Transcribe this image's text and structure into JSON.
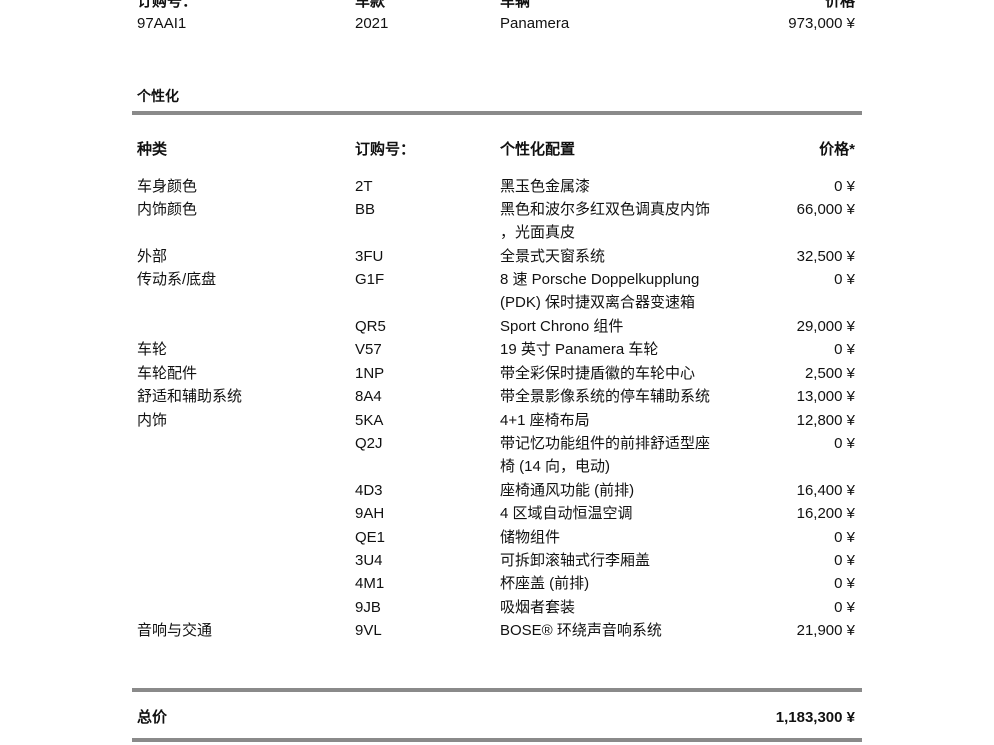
{
  "vehicle": {
    "headers": {
      "order_no": "订购号：",
      "model_year": "车款",
      "vehicle": "车辆",
      "price": "价格"
    },
    "order_no": "97AAI1",
    "model_year": "2021",
    "vehicle": "Panamera",
    "price": "973,000 ¥"
  },
  "personalization": {
    "title": "个性化",
    "headers": {
      "category": "种类",
      "order_no": "订购号：",
      "config": "个性化配置",
      "price": "价格*"
    },
    "rows": [
      {
        "category": "车身颜色",
        "code": "2T",
        "config": [
          "黑玉色金属漆"
        ],
        "price": "0 ¥"
      },
      {
        "category": "内饰颜色",
        "code": "BB",
        "config": [
          "黑色和波尔多红双色调真皮内饰",
          "，光面真皮"
        ],
        "price": "66,000 ¥"
      },
      {
        "category": "外部",
        "code": "3FU",
        "config": [
          "全景式天窗系统"
        ],
        "price": "32,500 ¥"
      },
      {
        "category": "传动系/底盘",
        "code": "G1F",
        "config": [
          "8 速 Porsche Doppelkupplung",
          "(PDK) 保时捷双离合器变速箱"
        ],
        "price": "0 ¥"
      },
      {
        "category": "",
        "code": "QR5",
        "config": [
          "Sport Chrono 组件"
        ],
        "price": "29,000 ¥"
      },
      {
        "category": "车轮",
        "code": "V57",
        "config": [
          "19 英寸 Panamera 车轮"
        ],
        "price": "0 ¥"
      },
      {
        "category": "车轮配件",
        "code": "1NP",
        "config": [
          "带全彩保时捷盾徽的车轮中心"
        ],
        "price": "2,500 ¥"
      },
      {
        "category": "舒适和辅助系统",
        "code": "8A4",
        "config": [
          "带全景影像系统的停车辅助系统"
        ],
        "price": "13,000 ¥"
      },
      {
        "category": "内饰",
        "code": "5KA",
        "config": [
          "4+1 座椅布局"
        ],
        "price": "12,800 ¥"
      },
      {
        "category": "",
        "code": "Q2J",
        "config": [
          "带记忆功能组件的前排舒适型座",
          "椅 (14 向，电动)"
        ],
        "price": "0 ¥"
      },
      {
        "category": "",
        "code": "4D3",
        "config": [
          "座椅通风功能 (前排)"
        ],
        "price": "16,400 ¥"
      },
      {
        "category": "",
        "code": "9AH",
        "config": [
          "4 区域自动恒温空调"
        ],
        "price": "16,200 ¥"
      },
      {
        "category": "",
        "code": "QE1",
        "config": [
          "储物组件"
        ],
        "price": "0 ¥"
      },
      {
        "category": "",
        "code": "3U4",
        "config": [
          "可拆卸滚轴式行李厢盖"
        ],
        "price": "0 ¥"
      },
      {
        "category": "",
        "code": "4M1",
        "config": [
          "杯座盖 (前排)"
        ],
        "price": "0 ¥"
      },
      {
        "category": "",
        "code": "9JB",
        "config": [
          "吸烟者套装"
        ],
        "price": "0 ¥"
      },
      {
        "category": "音响与交通",
        "code": "9VL",
        "config": [
          "BOSE® 环绕声音响系统"
        ],
        "price": "21,900 ¥"
      }
    ]
  },
  "total": {
    "label": "总价",
    "value": "1,183,300 ¥"
  }
}
